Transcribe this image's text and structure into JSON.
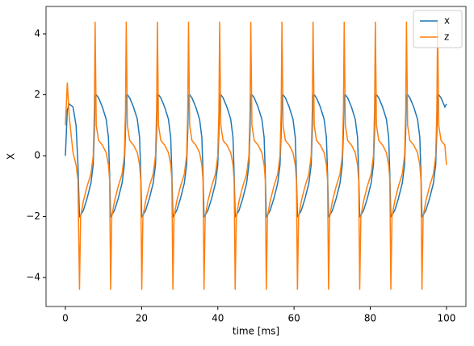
{
  "chart_data": {
    "type": "line",
    "xlabel": "time [ms]",
    "ylabel": "X",
    "x": [
      0,
      0.5,
      1,
      2,
      2.8,
      3.3,
      3.7,
      4,
      4.7,
      5.7,
      6.7,
      7.3,
      7.6,
      7.8,
      8.1,
      8.7,
      9.7,
      10.7,
      11.3,
      11.6,
      11.87,
      12.17,
      12.87,
      13.87,
      14.87,
      15.47,
      15.77,
      15.97,
      16.27,
      16.87,
      17.87,
      18.87,
      19.47,
      19.77,
      20.04,
      20.34,
      21.04,
      22.04,
      23.04,
      23.64,
      23.94,
      24.14,
      24.44,
      25.04,
      26.04,
      27.04,
      27.64,
      27.94,
      28.21,
      28.51,
      29.21,
      30.21,
      31.21,
      31.81,
      32.11,
      32.31,
      32.61,
      33.21,
      34.21,
      35.21,
      35.81,
      36.11,
      36.38,
      36.68,
      37.38,
      38.38,
      39.38,
      39.98,
      40.28,
      40.48,
      40.78,
      41.38,
      42.38,
      43.38,
      43.98,
      44.28,
      44.55,
      44.85,
      45.55,
      46.55,
      47.55,
      48.15,
      48.45,
      48.65,
      48.95,
      49.55,
      50.55,
      51.55,
      52.15,
      52.45,
      52.72,
      53.02,
      53.72,
      54.72,
      55.72,
      56.32,
      56.62,
      56.82,
      57.12,
      57.72,
      58.72,
      59.72,
      60.32,
      60.62,
      60.89,
      61.19,
      61.89,
      62.89,
      63.89,
      64.49,
      64.79,
      64.99,
      65.29,
      65.89,
      66.89,
      67.89,
      68.49,
      68.79,
      69.06,
      69.36,
      70.06,
      71.06,
      72.06,
      72.66,
      72.96,
      73.16,
      73.46,
      74.06,
      75.06,
      76.06,
      76.66,
      76.96,
      77.23,
      77.53,
      78.23,
      79.23,
      80.23,
      80.83,
      81.13,
      81.33,
      81.63,
      82.23,
      83.23,
      84.23,
      84.83,
      85.13,
      85.4,
      85.7,
      86.4,
      87.4,
      88.4,
      89,
      89.3,
      89.5,
      89.8,
      90.4,
      91.4,
      92.4,
      93,
      93.3,
      93.57,
      93.87,
      94.57,
      95.57,
      96.57,
      97.17,
      97.47,
      97.67,
      97.97,
      98.57,
      99.57,
      100
    ],
    "series": [
      {
        "name": "x",
        "color": "#1f77b4",
        "values": [
          0,
          1.5,
          1.7,
          1.6,
          1.0,
          -0.3,
          -2,
          -1.95,
          -1.8,
          -1.4,
          -0.9,
          -0.3,
          0.8,
          2,
          2,
          1.9,
          1.6,
          1.2,
          0.6,
          -0.6,
          -2,
          -1.95,
          -1.8,
          -1.4,
          -0.9,
          -0.3,
          0.8,
          2,
          2,
          1.9,
          1.6,
          1.2,
          0.6,
          -0.6,
          -2,
          -1.95,
          -1.8,
          -1.4,
          -0.9,
          -0.3,
          0.8,
          2,
          2,
          1.9,
          1.6,
          1.2,
          0.6,
          -0.6,
          -2,
          -1.95,
          -1.8,
          -1.4,
          -0.9,
          -0.3,
          0.8,
          2,
          2,
          1.9,
          1.6,
          1.2,
          0.6,
          -0.6,
          -2,
          -1.95,
          -1.8,
          -1.4,
          -0.9,
          -0.3,
          0.8,
          2,
          2,
          1.9,
          1.6,
          1.2,
          0.6,
          -0.6,
          -2,
          -1.95,
          -1.8,
          -1.4,
          -0.9,
          -0.3,
          0.8,
          2,
          2,
          1.9,
          1.6,
          1.2,
          0.6,
          -0.6,
          -2,
          -1.95,
          -1.8,
          -1.4,
          -0.9,
          -0.3,
          0.8,
          2,
          2,
          1.9,
          1.6,
          1.2,
          0.6,
          -0.6,
          -2,
          -1.95,
          -1.8,
          -1.4,
          -0.9,
          -0.3,
          0.8,
          2,
          2,
          1.9,
          1.6,
          1.2,
          0.6,
          -0.6,
          -2,
          -1.95,
          -1.8,
          -1.4,
          -0.9,
          -0.3,
          0.8,
          2,
          2,
          1.9,
          1.6,
          1.2,
          0.6,
          -0.6,
          -2,
          -1.95,
          -1.8,
          -1.4,
          -0.9,
          -0.3,
          0.8,
          2,
          2,
          1.9,
          1.6,
          1.2,
          0.6,
          -0.6,
          -2,
          -1.95,
          -1.8,
          -1.4,
          -0.9,
          -0.3,
          0.8,
          2,
          2,
          1.9,
          1.6,
          1.2,
          0.6,
          -0.6,
          -2,
          -1.95,
          -1.8,
          -1.4,
          -0.9,
          -0.3,
          0.8,
          2,
          2,
          1.9,
          1.6,
          1.7
        ]
      },
      {
        "name": "z",
        "color": "#ff7f0e",
        "values": [
          1.0,
          2.4,
          1.3,
          0.1,
          -0.3,
          -0.8,
          -4.4,
          -2,
          -1.5,
          -1,
          -0.6,
          0,
          1.5,
          4.4,
          1,
          0.5,
          0.35,
          0.1,
          -0.3,
          -0.8,
          -4.4,
          -2,
          -1.5,
          -1,
          -0.6,
          0,
          1.5,
          4.4,
          1,
          0.5,
          0.35,
          0.1,
          -0.3,
          -0.8,
          -4.4,
          -2,
          -1.5,
          -1,
          -0.6,
          0,
          1.5,
          4.4,
          1,
          0.5,
          0.35,
          0.1,
          -0.3,
          -0.8,
          -4.4,
          -2,
          -1.5,
          -1,
          -0.6,
          0,
          1.5,
          4.4,
          1,
          0.5,
          0.35,
          0.1,
          -0.3,
          -0.8,
          -4.4,
          -2,
          -1.5,
          -1,
          -0.6,
          0,
          1.5,
          4.4,
          1,
          0.5,
          0.35,
          0.1,
          -0.3,
          -0.8,
          -4.4,
          -2,
          -1.5,
          -1,
          -0.6,
          0,
          1.5,
          4.4,
          1,
          0.5,
          0.35,
          0.1,
          -0.3,
          -0.8,
          -4.4,
          -2,
          -1.5,
          -1,
          -0.6,
          0,
          1.5,
          4.4,
          1,
          0.5,
          0.35,
          0.1,
          -0.3,
          -0.8,
          -4.4,
          -2,
          -1.5,
          -1,
          -0.6,
          0,
          1.5,
          4.4,
          1,
          0.5,
          0.35,
          0.1,
          -0.3,
          -0.8,
          -4.4,
          -2,
          -1.5,
          -1,
          -0.6,
          0,
          1.5,
          4.4,
          1,
          0.5,
          0.35,
          0.1,
          -0.3,
          -0.8,
          -4.4,
          -2,
          -1.5,
          -1,
          -0.6,
          0,
          1.5,
          4.4,
          1,
          0.5,
          0.35,
          0.1,
          -0.3,
          -0.8,
          -4.4,
          -2,
          -1.5,
          -1,
          -0.6,
          0,
          1.5,
          4.4,
          1,
          0.5,
          0.35,
          0.1,
          -0.3,
          -0.8,
          -4.4,
          -2,
          -1.5,
          -1,
          -0.6,
          0,
          1.5,
          4.4,
          1,
          0.5,
          0.35,
          -0.3
        ]
      }
    ],
    "xlim": [
      -5.08,
      105.1
    ],
    "ylim": [
      -4.95,
      4.9
    ],
    "xticks": [
      0,
      20,
      40,
      60,
      80,
      100
    ],
    "yticks": [
      {
        "value": -4,
        "label": "−4"
      },
      {
        "value": -2,
        "label": "−2"
      },
      0,
      2,
      4
    ],
    "legend": "upper right",
    "grid": false
  }
}
